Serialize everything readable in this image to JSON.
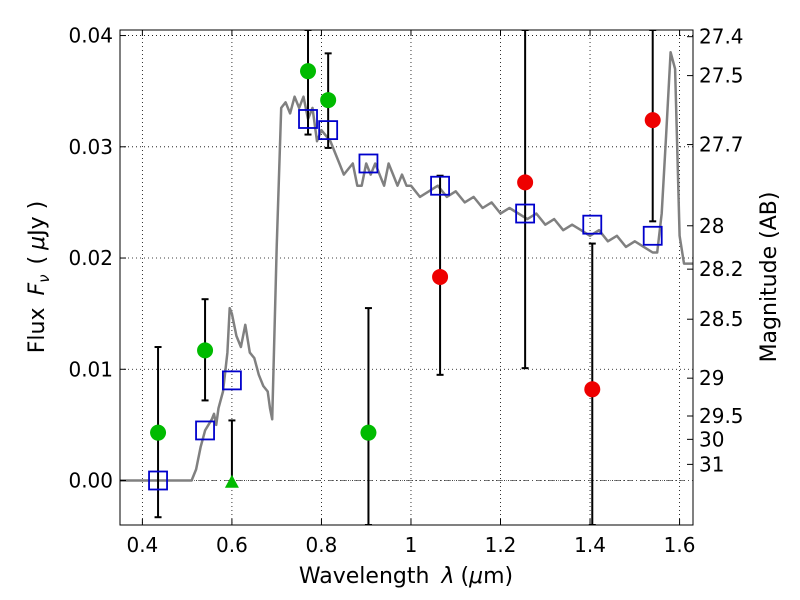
{
  "chart_data": {
    "type": "scatter",
    "xlabel_text": "Wavelength",
    "xlabel_symbol": "λ",
    "xlabel_unit_prefix": "(",
    "xlabel_unit_mu": "μ",
    "xlabel_unit_rest": "m)",
    "ylabel_text": "Flux",
    "ylabel_symbol": "F",
    "ylabel_sub": "ν",
    "ylabel_unit_prefix": "(",
    "ylabel_unit_mu": "μ",
    "ylabel_unit_rest": "Jy )",
    "y2label": "Magnitude (AB)",
    "xlim": [
      0.35,
      1.63
    ],
    "ylim": [
      -0.004,
      0.0405
    ],
    "grid": true,
    "x_ticks": [
      {
        "v": 0.4,
        "label": "0.4"
      },
      {
        "v": 0.6,
        "label": "0.6"
      },
      {
        "v": 0.8,
        "label": "0.8"
      },
      {
        "v": 1.0,
        "label": "1"
      },
      {
        "v": 1.2,
        "label": "1.2"
      },
      {
        "v": 1.4,
        "label": "1.4"
      },
      {
        "v": 1.6,
        "label": "1.6"
      }
    ],
    "y_ticks": [
      {
        "v": 0.0,
        "label": "0.00"
      },
      {
        "v": 0.01,
        "label": "0.01"
      },
      {
        "v": 0.02,
        "label": "0.02"
      },
      {
        "v": 0.03,
        "label": "0.03"
      },
      {
        "v": 0.04,
        "label": "0.04"
      }
    ],
    "mag_ticks": [
      {
        "v": 0.0399,
        "label": "27.4"
      },
      {
        "v": 0.0364,
        "label": "27.5"
      },
      {
        "v": 0.0302,
        "label": "27.7"
      },
      {
        "v": 0.0229,
        "label": "28"
      },
      {
        "v": 0.019,
        "label": "28.2"
      },
      {
        "v": 0.0145,
        "label": "28.5"
      },
      {
        "v": 0.0092,
        "label": "29"
      },
      {
        "v": 0.0058,
        "label": "29.5"
      },
      {
        "v": 0.0037,
        "label": "30"
      },
      {
        "v": 0.00145,
        "label": "31"
      }
    ],
    "zero_line": 0.0,
    "sed_model": {
      "name": "",
      "color": "#808080",
      "x": [
        0.35,
        0.5,
        0.51,
        0.52,
        0.53,
        0.54,
        0.555,
        0.56,
        0.565,
        0.57,
        0.58,
        0.59,
        0.595,
        0.6,
        0.61,
        0.62,
        0.63,
        0.64,
        0.65,
        0.66,
        0.67,
        0.68,
        0.685,
        0.69,
        0.7,
        0.71,
        0.72,
        0.73,
        0.74,
        0.75,
        0.76,
        0.77,
        0.78,
        0.79,
        0.8,
        0.81,
        0.82,
        0.83,
        0.84,
        0.85,
        0.86,
        0.87,
        0.88,
        0.89,
        0.9,
        0.91,
        0.92,
        0.93,
        0.94,
        0.95,
        0.96,
        0.97,
        0.98,
        0.99,
        1.0,
        1.02,
        1.04,
        1.06,
        1.08,
        1.1,
        1.12,
        1.14,
        1.16,
        1.18,
        1.2,
        1.22,
        1.24,
        1.26,
        1.28,
        1.3,
        1.32,
        1.34,
        1.36,
        1.38,
        1.4,
        1.42,
        1.44,
        1.46,
        1.48,
        1.5,
        1.52,
        1.54,
        1.55,
        1.56,
        1.57,
        1.58,
        1.59,
        1.6,
        1.61,
        1.63
      ],
      "y": [
        0.0,
        0.0,
        0.0,
        0.001,
        0.003,
        0.0045,
        0.0055,
        0.006,
        0.005,
        0.0065,
        0.008,
        0.0115,
        0.0155,
        0.015,
        0.013,
        0.012,
        0.014,
        0.0115,
        0.011,
        0.0095,
        0.0085,
        0.008,
        0.0065,
        0.0055,
        0.021,
        0.0335,
        0.034,
        0.033,
        0.0345,
        0.0335,
        0.0345,
        0.0325,
        0.0335,
        0.0305,
        0.0315,
        0.031,
        0.0305,
        0.0295,
        0.0285,
        0.0275,
        0.028,
        0.0285,
        0.0265,
        0.0265,
        0.0285,
        0.0275,
        0.0285,
        0.0275,
        0.0265,
        0.0285,
        0.0275,
        0.0265,
        0.0275,
        0.0265,
        0.0265,
        0.0255,
        0.026,
        0.0265,
        0.0255,
        0.026,
        0.025,
        0.0255,
        0.0245,
        0.025,
        0.024,
        0.0245,
        0.024,
        0.0235,
        0.024,
        0.023,
        0.0235,
        0.0225,
        0.023,
        0.0225,
        0.022,
        0.0225,
        0.0215,
        0.022,
        0.021,
        0.0215,
        0.021,
        0.0205,
        0.0205,
        0.024,
        0.031,
        0.0385,
        0.037,
        0.022,
        0.0195,
        0.0195
      ]
    },
    "model_points": {
      "name": "",
      "color": "#0000cc",
      "x": [
        0.435,
        0.54,
        0.6,
        0.77,
        0.815,
        0.905,
        1.065,
        1.255,
        1.405,
        1.54
      ],
      "y": [
        0.0,
        0.0045,
        0.009,
        0.0325,
        0.0315,
        0.0285,
        0.0265,
        0.024,
        0.023,
        0.022
      ]
    },
    "detections": {
      "name": "",
      "color": "#00bb00",
      "points": [
        {
          "x": 0.435,
          "y": 0.0043,
          "err_lo": -0.0033,
          "err_hi": 0.012
        },
        {
          "x": 0.54,
          "y": 0.0117,
          "err_lo": 0.0072,
          "err_hi": 0.0163
        },
        {
          "x": 0.77,
          "y": 0.0368,
          "err_lo": 0.0311,
          "err_hi": 0.0405
        },
        {
          "x": 0.815,
          "y": 0.0342,
          "err_lo": 0.0299,
          "err_hi": 0.0384
        },
        {
          "x": 0.905,
          "y": 0.0043,
          "err_lo": -0.004,
          "err_hi": 0.0155
        }
      ]
    },
    "upper_limit": {
      "name": "",
      "color": "#00bb00",
      "marker": "triangle",
      "x": 0.6,
      "y": -0.0002,
      "err_lo": -0.0002,
      "err_hi": 0.0054
    },
    "nondetections": {
      "name": "",
      "color": "#ee0000",
      "points": [
        {
          "x": 1.065,
          "y": 0.0183,
          "err_lo": 0.0095,
          "err_hi": 0.0274
        },
        {
          "x": 1.255,
          "y": 0.0268,
          "err_lo": 0.0101,
          "err_hi": 0.0405
        },
        {
          "x": 1.405,
          "y": 0.0082,
          "err_lo": -0.004,
          "err_hi": 0.0213
        },
        {
          "x": 1.54,
          "y": 0.0324,
          "err_lo": 0.0233,
          "err_hi": 0.0405
        }
      ]
    }
  }
}
